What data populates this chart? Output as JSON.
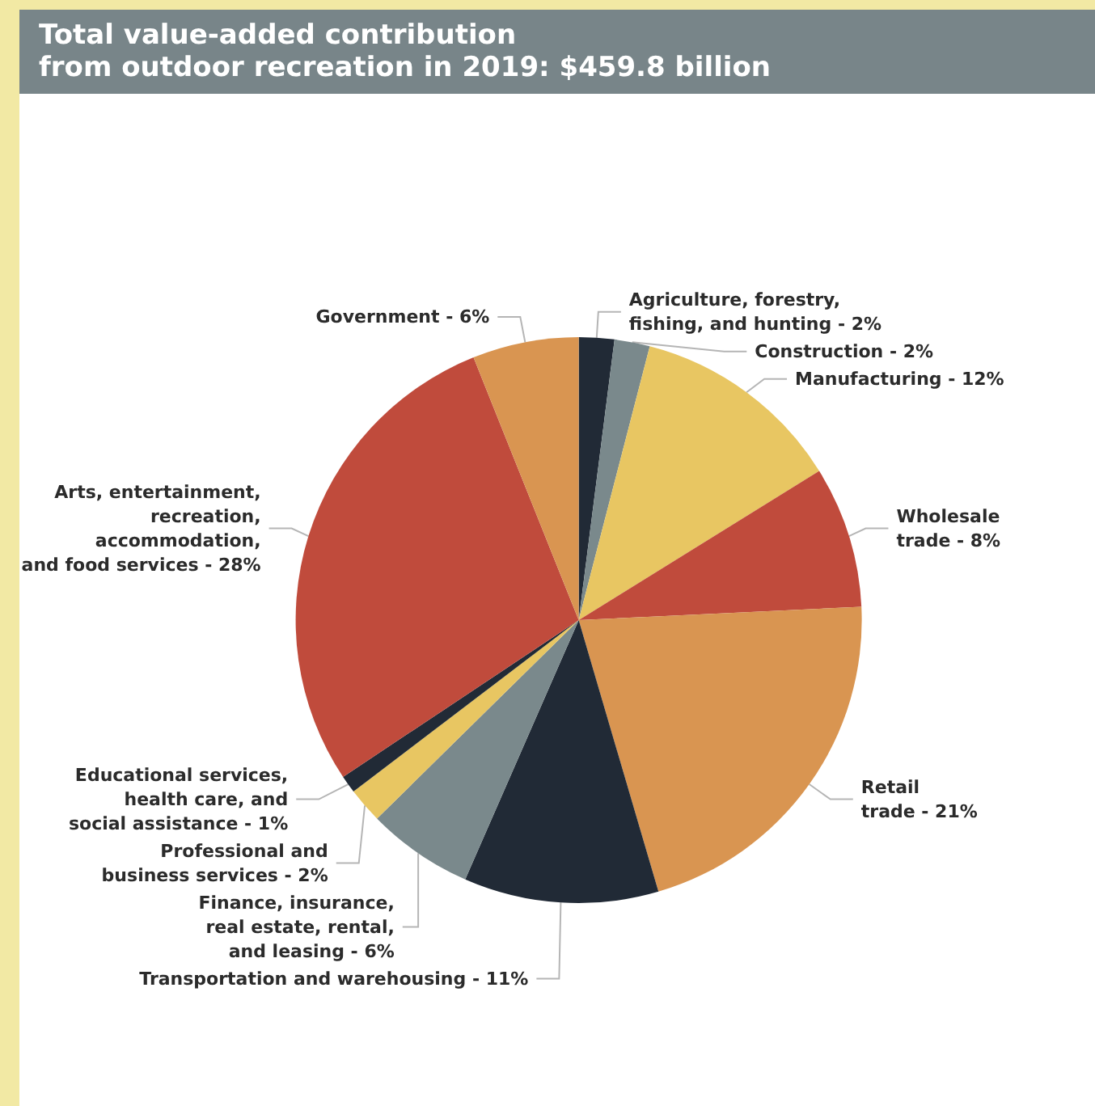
{
  "chart_data": {
    "type": "pie",
    "title": "Total value-added contribution\nfrom outdoor recreation in 2019: $459.8 billion",
    "categories": [
      "Agriculture, forestry,\nfishing, and hunting",
      "Construction",
      "Manufacturing",
      "Wholesale\ntrade",
      "Retail\ntrade",
      "Transportation and warehousing",
      "Finance, insurance,\nreal estate, rental,\nand leasing",
      "Professional and\nbusiness services",
      "Educational services,\nhealth care, and\nsocial assistance",
      "Arts, entertainment,\nrecreation,\naccommodation,\nand food services",
      "Government"
    ],
    "values": [
      2,
      2,
      12,
      8,
      21,
      11,
      6,
      2,
      1,
      28,
      6
    ],
    "value_labels": [
      "2%",
      "2%",
      "12%",
      "8%",
      "21%",
      "11%",
      "6%",
      "2%",
      "1%",
      "28%",
      "6%"
    ],
    "colors": [
      "#212a36",
      "#7a898c",
      "#e8c662",
      "#c04b3c",
      "#d99551",
      "#212a36",
      "#7a898c",
      "#e8c662",
      "#212a36",
      "#c04b3c",
      "#d99551"
    ],
    "legend": false
  }
}
